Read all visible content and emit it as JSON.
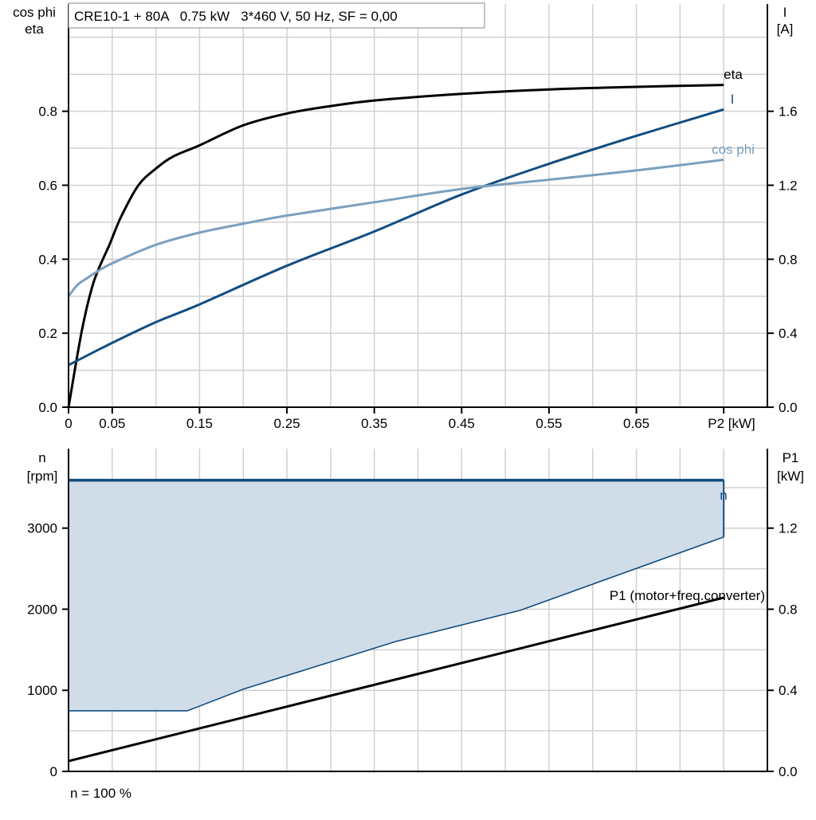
{
  "chart_data": [
    {
      "type": "line",
      "title": "CRE10-1 + 80A   0.75 kW   3*460 V, 50 Hz, SF = 0,00",
      "xlabel": "P2 [kW]",
      "ylabel_left": [
        "cos phi",
        "eta"
      ],
      "ylabel_right": [
        "I",
        "[A]"
      ],
      "xlim": [
        0,
        0.8
      ],
      "ylim_left": [
        0,
        1.09
      ],
      "ylim_right": [
        0,
        2.18
      ],
      "x_ticks": [
        "0",
        "0.05",
        "0.15",
        "0.25",
        "0.35",
        "0.45",
        "0.55",
        "0.65"
      ],
      "y_ticks_left": [
        "0.0",
        "0.2",
        "0.4",
        "0.6",
        "0.8"
      ],
      "y_ticks_right": [
        "0.0",
        "0.4",
        "0.8",
        "1.2",
        "1.6"
      ],
      "grid": true,
      "series": [
        {
          "name": "eta",
          "axis": "left",
          "color": "#000000",
          "x": [
            0,
            0.0155,
            0.029,
            0.047,
            0.06,
            0.08,
            0.1,
            0.12,
            0.15,
            0.2,
            0.25,
            0.3,
            0.35,
            0.45,
            0.55,
            0.65,
            0.75
          ],
          "y": [
            0,
            0.21,
            0.34,
            0.44,
            0.514,
            0.6,
            0.645,
            0.678,
            0.708,
            0.762,
            0.794,
            0.814,
            0.829,
            0.847,
            0.859,
            0.866,
            0.871
          ]
        },
        {
          "name": "I",
          "axis": "right",
          "color": "#124d80",
          "x": [
            0,
            0.05,
            0.1,
            0.15,
            0.25,
            0.35,
            0.45,
            0.55,
            0.65,
            0.75
          ],
          "y": [
            0.228,
            0.348,
            0.46,
            0.556,
            0.765,
            0.95,
            1.15,
            1.316,
            1.467,
            1.61
          ]
        },
        {
          "name": "cos phi",
          "axis": "left",
          "color": "#7ba0c0",
          "x": [
            0,
            0.01,
            0.02,
            0.031,
            0.05,
            0.1,
            0.15,
            0.2,
            0.25,
            0.35,
            0.45,
            0.55,
            0.65,
            0.75
          ],
          "y": [
            0.3,
            0.33,
            0.347,
            0.364,
            0.389,
            0.439,
            0.472,
            0.496,
            0.518,
            0.554,
            0.59,
            0.615,
            0.64,
            0.669
          ]
        }
      ]
    },
    {
      "type": "area",
      "xlim": [
        0,
        0.8
      ],
      "ylabel_left": [
        "n",
        "[rpm]"
      ],
      "ylabel_right": [
        "P1",
        "[kW]"
      ],
      "ylim_left": [
        0,
        3980
      ],
      "ylim_right": [
        0,
        1.592
      ],
      "y_ticks_left": [
        "0",
        "1000",
        "2000",
        "3000"
      ],
      "y_ticks_right": [
        "0.0",
        "0.4",
        "0.8",
        "1.2"
      ],
      "footer": "n = 100 %",
      "grid": true,
      "series": [
        {
          "name": "n",
          "axis": "left",
          "color": "#124d80",
          "fill": "#d0dce8",
          "x": [
            0,
            0.75
          ],
          "y_max": [
            3590,
            3590
          ],
          "min_x": [
            0,
            0.136,
            0.2,
            0.375,
            0.517,
            0.75
          ],
          "min_y": [
            747,
            747,
            1013,
            1603,
            1986,
            2891
          ]
        },
        {
          "name": "P1 (motor+freq.converter)",
          "axis": "right",
          "color": "#000000",
          "x": [
            0,
            0.75
          ],
          "y": [
            0.051,
            0.857
          ]
        }
      ]
    }
  ]
}
